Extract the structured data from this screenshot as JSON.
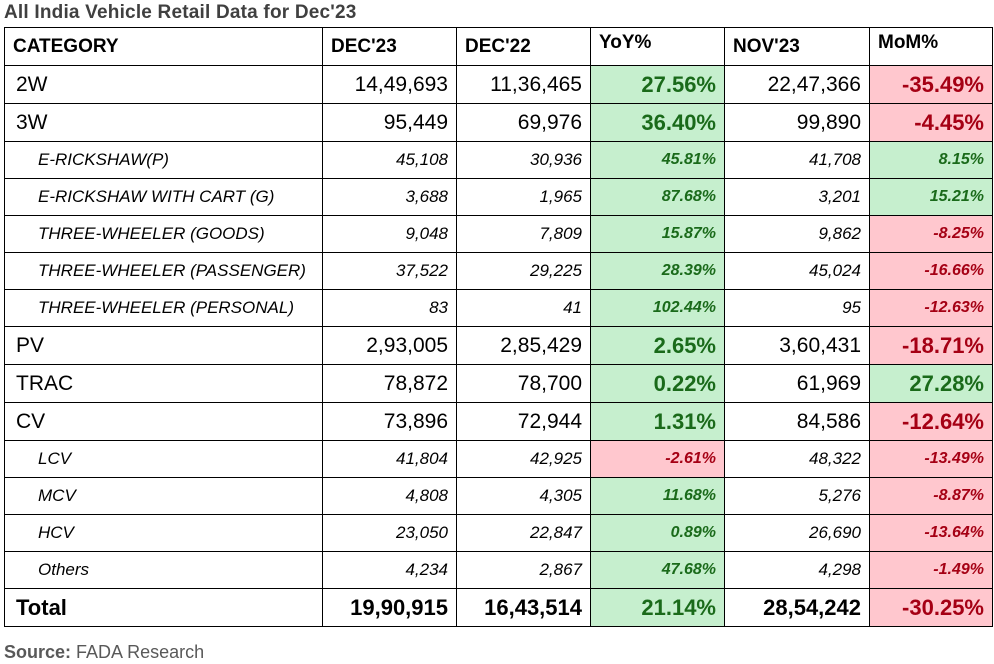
{
  "title": "All India Vehicle Retail Data for Dec'23",
  "headers": [
    "CATEGORY",
    "DEC'23",
    "DEC'22",
    "YoY%",
    "NOV'23",
    "MoM%"
  ],
  "rows": [
    {
      "type": "main",
      "category": "2W",
      "dec23": "14,49,693",
      "dec22": "11,36,465",
      "yoy": "27.56%",
      "yoy_sign": "pos",
      "nov23": "22,47,366",
      "mom": "-35.49%",
      "mom_sign": "neg"
    },
    {
      "type": "main",
      "category": "3W",
      "dec23": "95,449",
      "dec22": "69,976",
      "yoy": "36.40%",
      "yoy_sign": "pos",
      "nov23": "99,890",
      "mom": "-4.45%",
      "mom_sign": "neg"
    },
    {
      "type": "sub",
      "category": "E-RICKSHAW(P)",
      "dec23": "45,108",
      "dec22": "30,936",
      "yoy": "45.81%",
      "yoy_sign": "pos",
      "nov23": "41,708",
      "mom": "8.15%",
      "mom_sign": "pos"
    },
    {
      "type": "sub",
      "category": "E-RICKSHAW WITH CART (G)",
      "dec23": "3,688",
      "dec22": "1,965",
      "yoy": "87.68%",
      "yoy_sign": "pos",
      "nov23": "3,201",
      "mom": "15.21%",
      "mom_sign": "pos"
    },
    {
      "type": "sub",
      "category": "THREE-WHEELER (GOODS)",
      "dec23": "9,048",
      "dec22": "7,809",
      "yoy": "15.87%",
      "yoy_sign": "pos",
      "nov23": "9,862",
      "mom": "-8.25%",
      "mom_sign": "neg"
    },
    {
      "type": "sub",
      "category": "THREE-WHEELER (PASSENGER)",
      "dec23": "37,522",
      "dec22": "29,225",
      "yoy": "28.39%",
      "yoy_sign": "pos",
      "nov23": "45,024",
      "mom": "-16.66%",
      "mom_sign": "neg"
    },
    {
      "type": "sub",
      "category": "THREE-WHEELER (PERSONAL)",
      "dec23": "83",
      "dec22": "41",
      "yoy": "102.44%",
      "yoy_sign": "pos",
      "nov23": "95",
      "mom": "-12.63%",
      "mom_sign": "neg"
    },
    {
      "type": "main",
      "category": "PV",
      "dec23": "2,93,005",
      "dec22": "2,85,429",
      "yoy": "2.65%",
      "yoy_sign": "pos",
      "nov23": "3,60,431",
      "mom": "-18.71%",
      "mom_sign": "neg"
    },
    {
      "type": "main",
      "category": "TRAC",
      "dec23": "78,872",
      "dec22": "78,700",
      "yoy": "0.22%",
      "yoy_sign": "pos",
      "nov23": "61,969",
      "mom": "27.28%",
      "mom_sign": "pos"
    },
    {
      "type": "main",
      "category": "CV",
      "dec23": "73,896",
      "dec22": "72,944",
      "yoy": "1.31%",
      "yoy_sign": "pos",
      "nov23": "84,586",
      "mom": "-12.64%",
      "mom_sign": "neg"
    },
    {
      "type": "sub",
      "category": "LCV",
      "dec23": "41,804",
      "dec22": "42,925",
      "yoy": "-2.61%",
      "yoy_sign": "neg",
      "nov23": "48,322",
      "mom": "-13.49%",
      "mom_sign": "neg"
    },
    {
      "type": "sub",
      "category": "MCV",
      "dec23": "4,808",
      "dec22": "4,305",
      "yoy": "11.68%",
      "yoy_sign": "pos",
      "nov23": "5,276",
      "mom": "-8.87%",
      "mom_sign": "neg"
    },
    {
      "type": "sub",
      "category": "HCV",
      "dec23": "23,050",
      "dec22": "22,847",
      "yoy": "0.89%",
      "yoy_sign": "pos",
      "nov23": "26,690",
      "mom": "-13.64%",
      "mom_sign": "neg"
    },
    {
      "type": "sub",
      "category": "Others",
      "dec23": "4,234",
      "dec22": "2,867",
      "yoy": "47.68%",
      "yoy_sign": "pos",
      "nov23": "4,298",
      "mom": "-1.49%",
      "mom_sign": "neg"
    },
    {
      "type": "total",
      "category": "Total",
      "dec23": "19,90,915",
      "dec22": "16,43,514",
      "yoy": "21.14%",
      "yoy_sign": "pos",
      "nov23": "28,54,242",
      "mom": "-30.25%",
      "mom_sign": "neg"
    }
  ],
  "colors": {
    "positive_bg": "#c6efce",
    "positive_text": "#1a6a1a",
    "negative_bg": "#ffc7ce",
    "negative_text": "#a50014"
  },
  "source": {
    "label": "Source:",
    "text": "FADA Research"
  }
}
